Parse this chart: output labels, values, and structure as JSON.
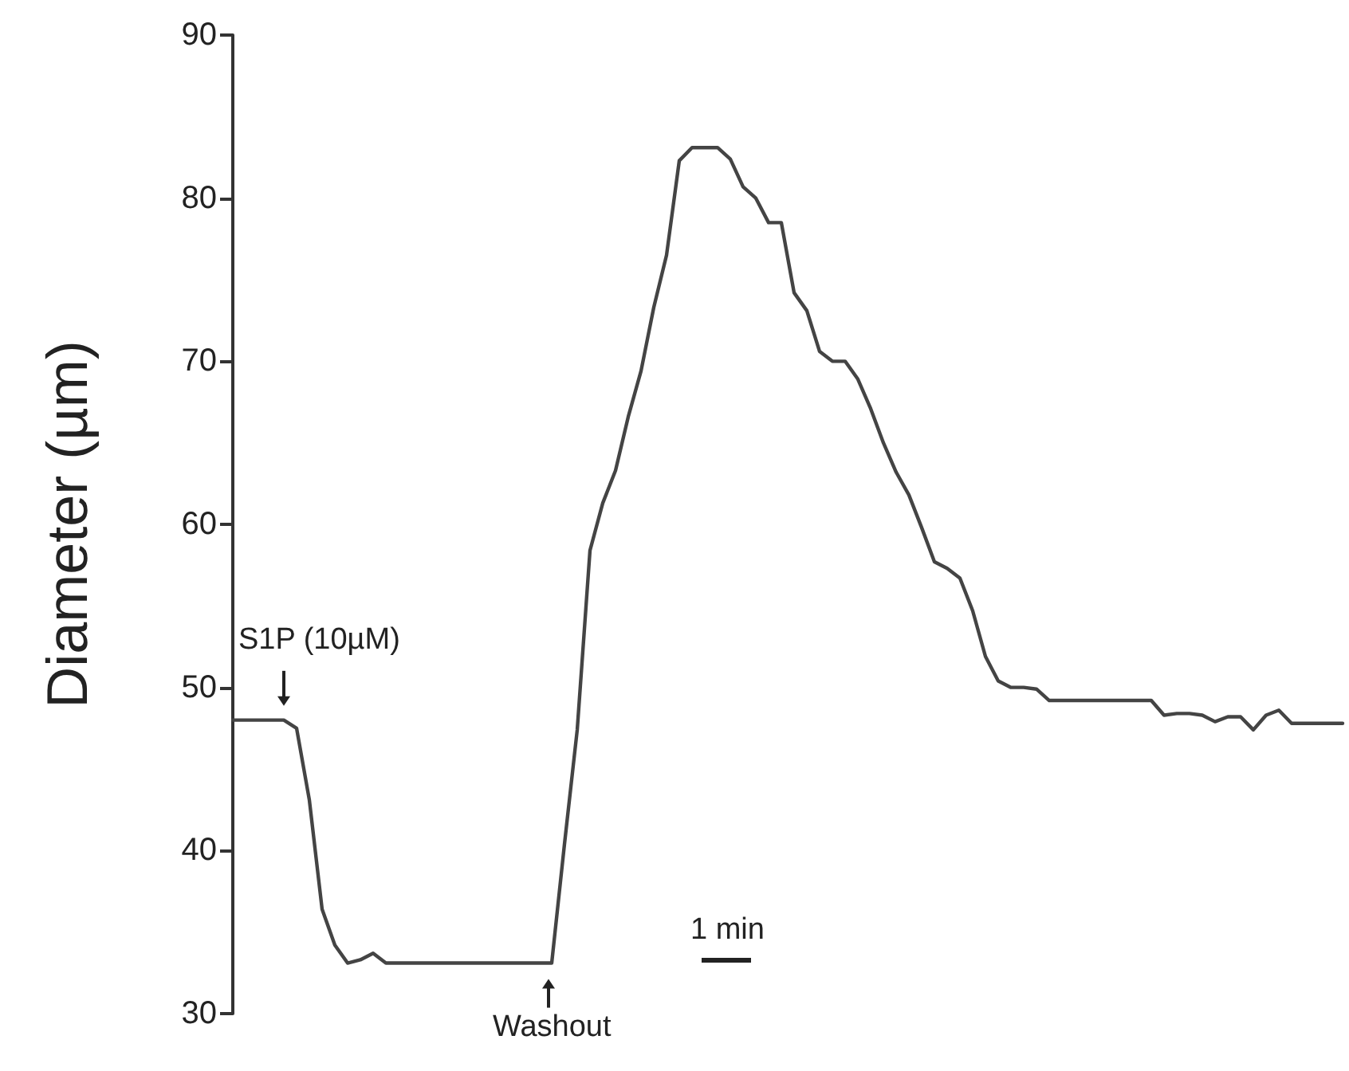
{
  "chart_data": {
    "type": "line",
    "ylabel": "Diameter (µm)",
    "annotations": [
      "S1P (10µM)",
      "Washout",
      "1 min"
    ],
    "categories": [
      null,
      null,
      null,
      null,
      null,
      null,
      null,
      null,
      null,
      null,
      null,
      null,
      null,
      null,
      null,
      null,
      null,
      null,
      null,
      null,
      null,
      null,
      null,
      null,
      null,
      null,
      null,
      null,
      null,
      null,
      null,
      null,
      null,
      null,
      null,
      null,
      null,
      null,
      null,
      null,
      null,
      null,
      null,
      null,
      null,
      null,
      null,
      null,
      null,
      null,
      null,
      null,
      null,
      null,
      null,
      null,
      null,
      null,
      null,
      null,
      null,
      null,
      null,
      null,
      null,
      null,
      null,
      null,
      null,
      null,
      null,
      null,
      null,
      null,
      null,
      null,
      null,
      null,
      null,
      null,
      null,
      null,
      null,
      null,
      null,
      null,
      null,
      null
    ],
    "series": [
      {
        "color": "#444444",
        "values": [
          48,
          48,
          48,
          48,
          48,
          47.5,
          43.1,
          36.4,
          34.2,
          33.1,
          33.3,
          33.7,
          33.1,
          33.1,
          33.1,
          33.1,
          33.1,
          33.1,
          33.1,
          33.1,
          33.1,
          33.1,
          33.1,
          33.1,
          33.1,
          33.1,
          40.4,
          47.4,
          58.4,
          61.3,
          63.3,
          66.6,
          69.4,
          73.3,
          76.5,
          82.3,
          83.1,
          83.1,
          83.1,
          82.4,
          80.7,
          80,
          78.5,
          78.5,
          74.2,
          73.1,
          70.6,
          70,
          70,
          68.9,
          67.1,
          65,
          63.2,
          61.8,
          59.8,
          57.7,
          57.3,
          56.7,
          54.7,
          51.9,
          50.4,
          50,
          50,
          49.9,
          49.2,
          49.2,
          49.2,
          49.2,
          49.2,
          49.2,
          49.2,
          49.2,
          49.2,
          48.3,
          48.4,
          48.4,
          48.3,
          47.9,
          48.2,
          48.2,
          47.4,
          48.3,
          48.6,
          47.8,
          47.8,
          47.8,
          47.8,
          47.8
        ]
      }
    ],
    "ylim": [
      30,
      90
    ],
    "yticks": [
      30,
      40,
      50,
      60,
      70,
      80,
      90
    ],
    "grid": false,
    "marker": "none",
    "line_style": "solid"
  }
}
